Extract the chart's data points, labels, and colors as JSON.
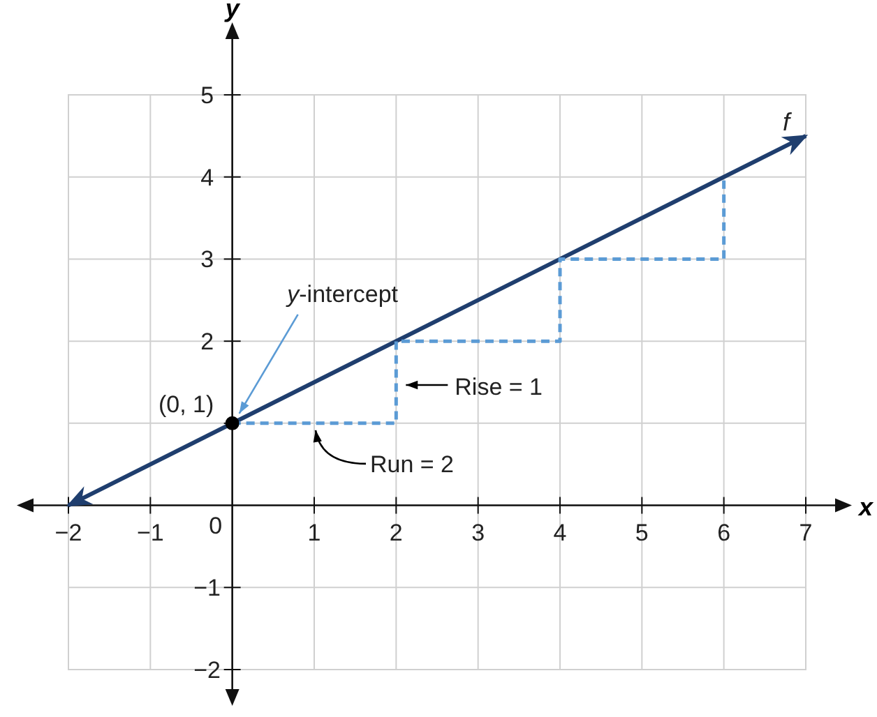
{
  "chart_data": {
    "type": "line",
    "xlabel": "x",
    "ylabel": "y",
    "xlim": [
      -2,
      7
    ],
    "ylim": [
      -2,
      5
    ],
    "xticks": [
      {
        "value": -2,
        "label": "−2"
      },
      {
        "value": -1,
        "label": "−1"
      },
      0,
      1,
      2,
      3,
      4,
      5,
      6,
      7
    ],
    "yticks": [
      {
        "value": -2,
        "label": "−2"
      },
      {
        "value": -1,
        "label": "−1"
      },
      {
        "value": 1,
        "label": null
      },
      2,
      3,
      4,
      5
    ],
    "grid": true,
    "legend": false,
    "series": [
      {
        "name": "f",
        "color": "#1f3e6e",
        "x": [
          -2,
          7
        ],
        "values": [
          0,
          4.5
        ],
        "line_style": "solid",
        "marker": "none"
      },
      {
        "color": "#5b9bd5",
        "x": [
          0,
          2,
          2,
          4,
          4,
          6,
          6
        ],
        "values": [
          1,
          1,
          2,
          2,
          3,
          3,
          4
        ],
        "line_style": "dashed",
        "marker": "none"
      },
      {
        "type": "scatter",
        "color": "#000000",
        "x": [
          0
        ],
        "values": [
          1
        ],
        "marker": "circle"
      }
    ],
    "annotations": [
      {
        "text": "(0, 1)",
        "x": 0,
        "y": 1
      },
      {
        "text": "y-intercept",
        "x": 0,
        "y": 1
      },
      {
        "text": "Rise = 1",
        "x": 2,
        "y": 1.5
      },
      {
        "text": "Run = 2",
        "x": 1,
        "y": 1
      }
    ]
  }
}
